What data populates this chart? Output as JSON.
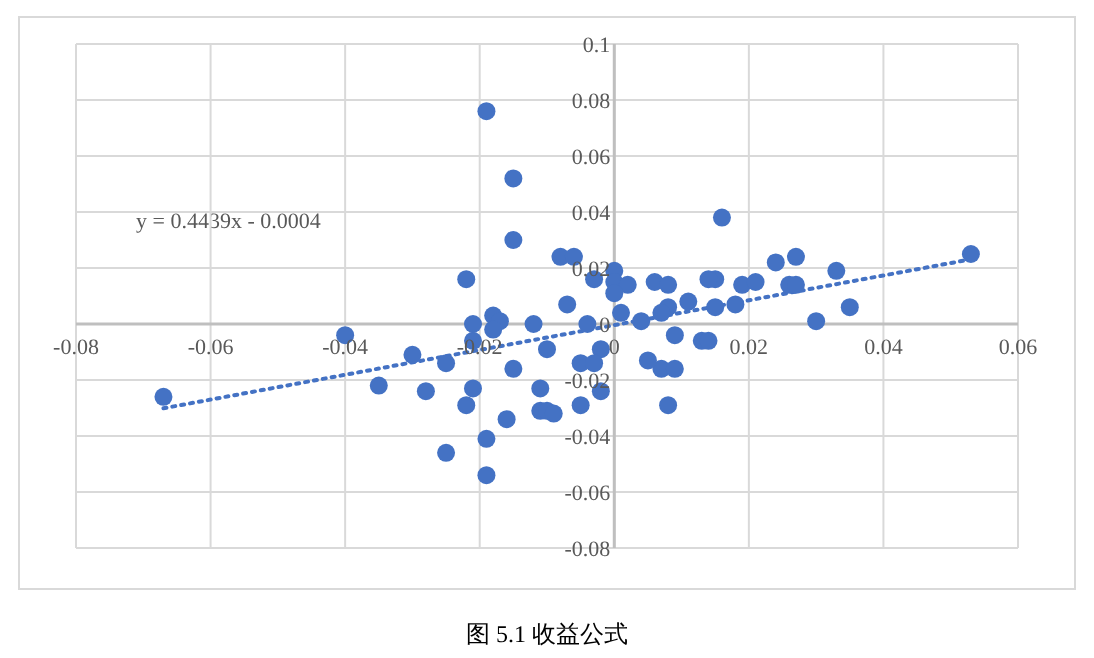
{
  "chart_data": {
    "type": "scatter",
    "xlim": [
      -0.08,
      0.06
    ],
    "xticks": [
      -0.08,
      -0.06,
      -0.04,
      -0.02,
      0,
      0.02,
      0.04,
      0.06
    ],
    "ylim": [
      -0.08,
      0.1
    ],
    "yticks": [
      -0.08,
      -0.06,
      -0.04,
      -0.02,
      0,
      0.02,
      0.04,
      0.06,
      0.08,
      0.1
    ],
    "grid": true,
    "marker": "circle",
    "annotations": [
      "y = 0.4439x - 0.0004",
      "图 5.1 收益公式"
    ],
    "series": [
      {
        "color": "#4472c4",
        "x": [
          -0.067,
          -0.04,
          -0.035,
          -0.03,
          -0.028,
          -0.025,
          -0.025,
          -0.022,
          -0.021,
          -0.021,
          -0.018,
          -0.017,
          -0.018,
          -0.015,
          -0.012,
          -0.01,
          -0.021,
          -0.022,
          -0.019,
          -0.016,
          -0.019,
          -0.011,
          -0.011,
          -0.01,
          -0.009,
          -0.019,
          -0.015,
          -0.015,
          -0.008,
          -0.006,
          -0.003,
          0.0,
          0.0,
          0.002,
          0.006,
          0.008,
          0.015,
          0.016,
          0.019,
          0.021,
          0.024,
          0.027,
          0.026,
          0.027,
          0.033,
          0.053,
          0.035,
          0.03,
          0.008,
          0.007,
          0.009,
          0.005,
          -0.002,
          -0.005,
          0.013,
          0.014,
          0.009,
          0.018,
          0.015,
          0.011,
          0.008,
          0.001,
          0.004,
          -0.002,
          -0.005,
          -0.003,
          -0.007,
          -0.004,
          0.0,
          0.007,
          0.014
        ],
        "values": [
          -0.026,
          -0.004,
          -0.022,
          -0.011,
          -0.024,
          -0.046,
          -0.014,
          0.016,
          0.0,
          -0.006,
          0.003,
          0.001,
          -0.002,
          -0.016,
          0.0,
          -0.009,
          -0.023,
          -0.029,
          -0.041,
          -0.034,
          -0.054,
          -0.023,
          -0.031,
          -0.031,
          -0.032,
          0.076,
          0.052,
          0.03,
          0.024,
          0.024,
          0.016,
          0.019,
          0.015,
          0.014,
          0.015,
          0.014,
          0.016,
          0.038,
          0.014,
          0.015,
          0.022,
          0.024,
          0.014,
          0.014,
          0.019,
          0.025,
          0.006,
          0.001,
          -0.029,
          -0.016,
          -0.016,
          -0.013,
          -0.024,
          -0.029,
          -0.006,
          -0.006,
          -0.004,
          0.007,
          0.006,
          0.008,
          0.006,
          0.004,
          0.001,
          -0.009,
          -0.014,
          -0.014,
          0.007,
          0.0,
          0.011,
          0.004,
          0.016
        ]
      },
      {
        "type": "line",
        "color": "#4472c4",
        "line_style": "dotted",
        "marker": "none",
        "x": [
          -0.067,
          0.053
        ],
        "values": [
          -0.0301,
          0.0231
        ]
      }
    ]
  }
}
